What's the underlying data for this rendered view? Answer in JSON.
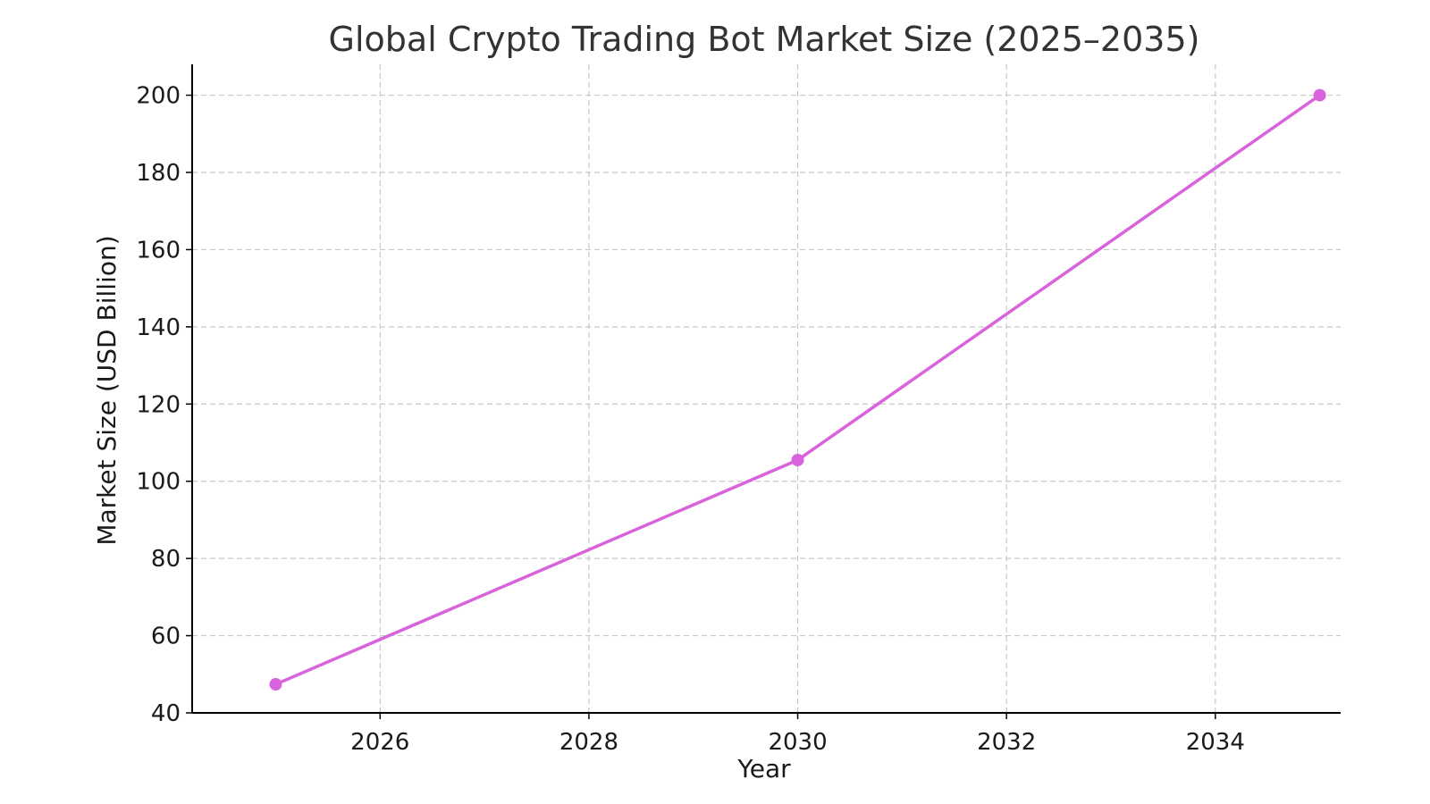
{
  "chart_data": {
    "type": "line",
    "title": "Global Crypto Trading Bot Market Size (2025–2035)",
    "xlabel": "Year",
    "ylabel": "Market Size (USD Billion)",
    "x": [
      2025,
      2030,
      2035
    ],
    "series": [
      {
        "values": [
          47.4,
          105.5,
          200.0
        ]
      }
    ],
    "xlim": [
      2024.2,
      2035.2
    ],
    "ylim": [
      40,
      208
    ],
    "xticks": [
      2026,
      2028,
      2030,
      2032,
      2034
    ],
    "yticks": [
      40,
      60,
      80,
      100,
      120,
      140,
      160,
      180,
      200
    ],
    "grid": true,
    "line_color": "#d963dc"
  }
}
